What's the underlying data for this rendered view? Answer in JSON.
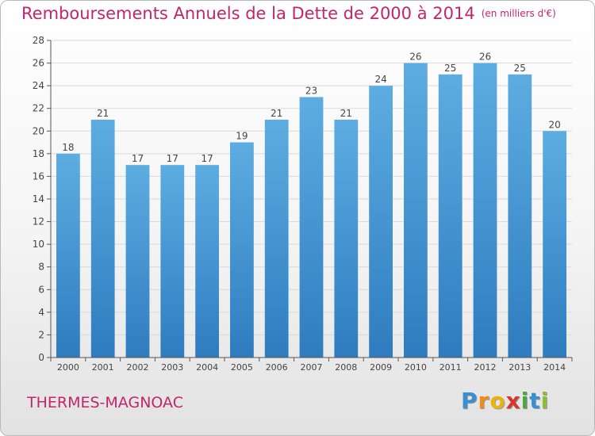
{
  "title": {
    "main": "Remboursements Annuels de la Dette de 2000 à 2014",
    "unit": "(en milliers d'€)"
  },
  "commune": "THERMES-MAGNOAC",
  "logo": {
    "name": "Proxiti",
    "letters": [
      "P",
      "r",
      "o",
      "x",
      "i",
      "t",
      "i"
    ],
    "colors": [
      "#3a8fd1",
      "#f08a1c",
      "#e8b50f",
      "#d9352c",
      "#4aa83f",
      "#3a8fd1",
      "#8bbf3a"
    ]
  },
  "colors": {
    "accent": "#c0266a",
    "bar_top": "#5dade2",
    "bar_bottom": "#2e7cbf",
    "grid": "#d9d9d9",
    "axis": "#555555"
  },
  "chart_data": {
    "type": "bar",
    "title": "Remboursements Annuels de la Dette de 2000 à 2014",
    "subtitle": "(en milliers d'€)",
    "xlabel": "",
    "ylabel": "",
    "categories": [
      "2000",
      "2001",
      "2002",
      "2003",
      "2004",
      "2005",
      "2006",
      "2007",
      "2008",
      "2009",
      "2010",
      "2011",
      "2012",
      "2013",
      "2014"
    ],
    "values": [
      18,
      21,
      17,
      17,
      17,
      19,
      21,
      23,
      21,
      24,
      26,
      25,
      26,
      25,
      20
    ],
    "ylim": [
      0,
      28
    ],
    "yticks": [
      0,
      2,
      4,
      6,
      8,
      10,
      12,
      14,
      16,
      18,
      20,
      22,
      24,
      26,
      28
    ],
    "grid": true,
    "legend": "none"
  }
}
